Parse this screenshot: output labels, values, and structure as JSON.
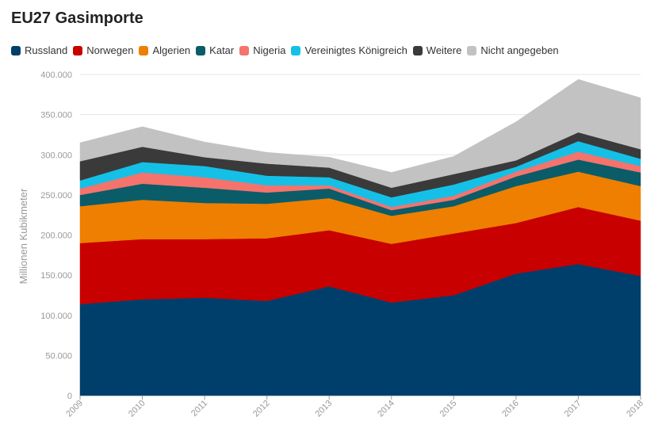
{
  "chart_data": {
    "type": "area",
    "stacked": true,
    "title": "EU27 Gasimporte",
    "ylabel": "Millionen Kubikmeter",
    "xlabel": "",
    "x": [
      "2009",
      "2010",
      "2011",
      "2012",
      "2013",
      "2014",
      "2015",
      "2016",
      "2017",
      "2018"
    ],
    "ylim": [
      0,
      400000
    ],
    "yticks": [
      0,
      50000,
      100000,
      150000,
      200000,
      250000,
      300000,
      350000,
      400000
    ],
    "ytick_labels": [
      "0",
      "50.000",
      "100.000",
      "150.000",
      "200.000",
      "250.000",
      "300.000",
      "350.000",
      "400.000"
    ],
    "grid": true,
    "legend_position": "top-left",
    "series": [
      {
        "name": "Russland",
        "color": "#003f6b",
        "values": [
          114000,
          120000,
          122000,
          118000,
          136000,
          116000,
          125000,
          152000,
          164000,
          149000
        ]
      },
      {
        "name": "Norwegen",
        "color": "#c80000",
        "values": [
          76000,
          75000,
          73000,
          78000,
          70000,
          73000,
          77000,
          63000,
          71000,
          69000
        ]
      },
      {
        "name": "Algerien",
        "color": "#ee7f00",
        "values": [
          46000,
          49000,
          45000,
          43000,
          40000,
          35000,
          34000,
          46000,
          44000,
          43000
        ]
      },
      {
        "name": "Katar",
        "color": "#0a5c68",
        "values": [
          14000,
          20000,
          19000,
          14000,
          12000,
          7000,
          8000,
          12000,
          15000,
          17000
        ]
      },
      {
        "name": "Nigeria",
        "color": "#f4736c",
        "values": [
          8000,
          14000,
          13000,
          9000,
          4000,
          4000,
          5000,
          6000,
          10000,
          8000
        ]
      },
      {
        "name": "Vereinigtes Königreich",
        "color": "#15c0e6",
        "values": [
          10000,
          13000,
          14000,
          12000,
          10000,
          12000,
          14000,
          6000,
          13000,
          9000
        ]
      },
      {
        "name": "Weitere",
        "color": "#3a3a3a",
        "values": [
          24000,
          19000,
          11000,
          15000,
          12000,
          12000,
          13000,
          8000,
          11000,
          12000
        ]
      },
      {
        "name": "Nicht angegeben",
        "color": "#c2c2c2",
        "values": [
          23000,
          25000,
          19000,
          14000,
          13000,
          19000,
          22000,
          48000,
          66000,
          64000
        ]
      }
    ]
  }
}
